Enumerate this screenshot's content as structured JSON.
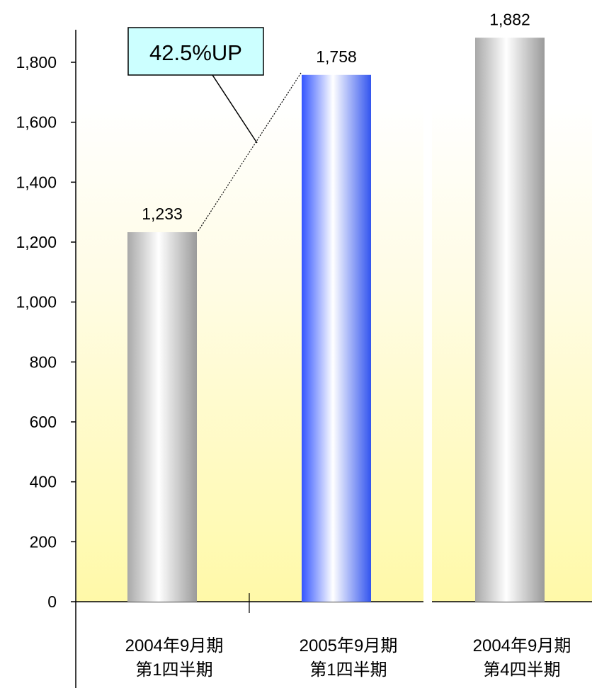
{
  "chart_data": {
    "type": "bar",
    "ylim": [
      0,
      1800
    ],
    "yticks": [
      "0",
      "200",
      "400",
      "600",
      "800",
      "1,000",
      "1,200",
      "1,400",
      "1,600",
      "1,800"
    ],
    "categories": [
      [
        "2004年9月期",
        "第1四半期"
      ],
      [
        "2005年9月期",
        "第1四半期"
      ],
      [
        "2004年9月期",
        "第4四半期"
      ]
    ],
    "values": [
      1233,
      1758,
      1882
    ],
    "value_labels": [
      "1,233",
      "1,758",
      "1,882"
    ],
    "bar_styles": [
      "silver",
      "blue",
      "silver"
    ],
    "callout": "42.5%UP",
    "grid": false,
    "background": "yellow-gradient"
  }
}
